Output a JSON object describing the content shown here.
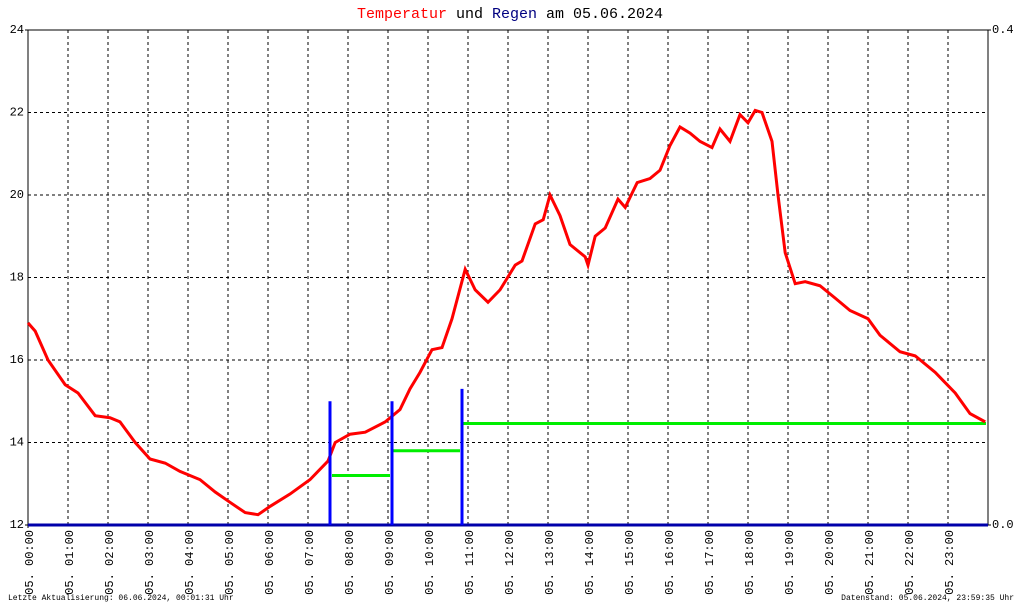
{
  "chart_data": {
    "type": "line",
    "title_parts": [
      "Temperatur",
      "und",
      "Regen",
      "am 05.06.2024"
    ],
    "footer_left": "Letzte Aktualisierung: 06.06.2024, 00:01:31 Uhr",
    "footer_right": "Datenstand: 05.06.2024, 23:59:35 Uhr",
    "xlim": [
      0,
      24
    ],
    "xticks": [
      {
        "value": 0,
        "label": "05. 00:00"
      },
      {
        "value": 1,
        "label": "05. 01:00"
      },
      {
        "value": 2,
        "label": "05. 02:00"
      },
      {
        "value": 3,
        "label": "05. 03:00"
      },
      {
        "value": 4,
        "label": "05. 04:00"
      },
      {
        "value": 5,
        "label": "05. 05:00"
      },
      {
        "value": 6,
        "label": "05. 06:00"
      },
      {
        "value": 7,
        "label": "05. 07:00"
      },
      {
        "value": 8,
        "label": "05. 08:00"
      },
      {
        "value": 9,
        "label": "05. 09:00"
      },
      {
        "value": 10,
        "label": "05. 10:00"
      },
      {
        "value": 11,
        "label": "05. 11:00"
      },
      {
        "value": 12,
        "label": "05. 12:00"
      },
      {
        "value": 13,
        "label": "05. 13:00"
      },
      {
        "value": 14,
        "label": "05. 14:00"
      },
      {
        "value": 15,
        "label": "05. 15:00"
      },
      {
        "value": 16,
        "label": "05. 16:00"
      },
      {
        "value": 17,
        "label": "05. 17:00"
      },
      {
        "value": 18,
        "label": "05. 18:00"
      },
      {
        "value": 19,
        "label": "05. 19:00"
      },
      {
        "value": 20,
        "label": "05. 20:00"
      },
      {
        "value": 21,
        "label": "05. 21:00"
      },
      {
        "value": 22,
        "label": "05. 22:00"
      },
      {
        "value": 23,
        "label": "05. 23:00"
      }
    ],
    "ylim": [
      12,
      24
    ],
    "yticks": [
      12,
      14,
      16,
      18,
      20,
      22,
      24
    ],
    "y2lim": [
      0,
      0.4
    ],
    "y2ticks": [
      {
        "value": 0,
        "label": "0.0"
      },
      {
        "value": 0.4,
        "label": "0.4"
      }
    ],
    "grid": true,
    "series": [
      {
        "type": "line",
        "color": "#ff0000",
        "x": [
          0,
          0.18,
          0.5,
          0.93,
          1.25,
          1.68,
          2.05,
          2.3,
          2.68,
          3.05,
          3.43,
          3.8,
          4.3,
          4.68,
          5.05,
          5.43,
          5.75,
          6.05,
          6.55,
          7.05,
          7.5,
          7.68,
          8.05,
          8.43,
          8.93,
          9.3,
          9.55,
          9.8,
          10.1,
          10.35,
          10.6,
          10.93,
          11.18,
          11.5,
          11.8,
          12.18,
          12.35,
          12.68,
          12.88,
          13.05,
          13.3,
          13.55,
          13.93,
          14.0,
          14.18,
          14.43,
          14.75,
          14.93,
          15.23,
          15.55,
          15.8,
          16.05,
          16.3,
          16.55,
          16.8,
          17.1,
          17.3,
          17.55,
          17.8,
          18.0,
          18.18,
          18.35,
          18.6,
          18.75,
          18.93,
          19.18,
          19.43,
          19.8,
          20.18,
          20.55,
          21.0,
          21.3,
          21.8,
          22.18,
          22.68,
          23.18,
          23.55,
          23.93
        ],
        "values": [
          16.9,
          16.7,
          16.0,
          15.4,
          15.2,
          14.65,
          14.6,
          14.5,
          14.0,
          13.6,
          13.5,
          13.3,
          13.1,
          12.8,
          12.55,
          12.3,
          12.25,
          12.45,
          12.75,
          13.1,
          13.55,
          14.0,
          14.2,
          14.25,
          14.5,
          14.8,
          15.3,
          15.7,
          16.25,
          16.3,
          17.0,
          18.2,
          17.7,
          17.4,
          17.7,
          18.3,
          18.4,
          19.3,
          19.4,
          20.0,
          19.5,
          18.8,
          18.5,
          18.3,
          19.0,
          19.2,
          19.9,
          19.7,
          20.3,
          20.4,
          20.6,
          21.2,
          21.65,
          21.5,
          21.3,
          21.15,
          21.6,
          21.3,
          21.95,
          21.75,
          22.05,
          22.0,
          21.3,
          20.0,
          18.6,
          17.85,
          17.9,
          17.8,
          17.5,
          17.2,
          17.0,
          16.6,
          16.2,
          16.1,
          15.7,
          15.2,
          14.7,
          14.5
        ]
      },
      {
        "type": "bar",
        "axis": "y2",
        "color": "#0000ff",
        "x": [
          7.55,
          9.1,
          10.85
        ],
        "values": [
          0.1,
          0.1,
          0.11
        ]
      },
      {
        "type": "line",
        "axis": "y2",
        "color": "#00ee00",
        "x": [
          7.6,
          9.05,
          9.05,
          9.1,
          10.8,
          10.8,
          10.85,
          23.95
        ],
        "values": [
          0.04,
          0.04,
          null,
          0.06,
          0.06,
          null,
          0.082,
          0.082
        ]
      }
    ]
  }
}
